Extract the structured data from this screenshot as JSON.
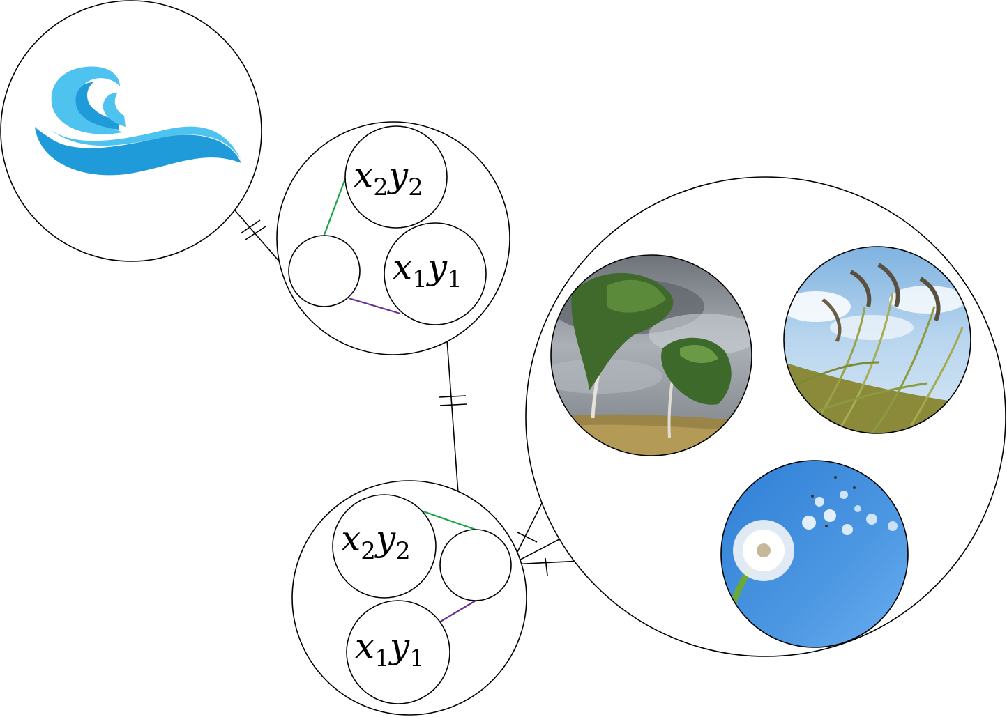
{
  "colors": {
    "outline": "#000000",
    "green_link": "#1aa34a",
    "purple_link": "#6a2c91",
    "wave_light": "#4ec3ef",
    "wave_dark": "#1f9bd9"
  },
  "icons": {
    "wave": "wave-icon",
    "storm_trees": "windblown-trees-photo",
    "reeds": "windblown-reeds-photo",
    "dandelion": "dandelion-seeds-photo"
  },
  "labels": {
    "x_var": "x",
    "y_var": "y",
    "sub_1": "1",
    "sub_2": "2"
  }
}
